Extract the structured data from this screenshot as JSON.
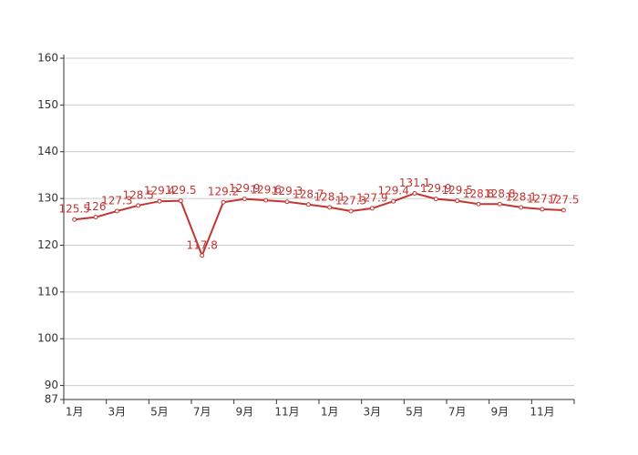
{
  "chart_data": {
    "type": "line",
    "categories": [
      "1月",
      null,
      "3月",
      null,
      "5月",
      null,
      "7月",
      null,
      "9月",
      null,
      "11月",
      null,
      "1月",
      null,
      "3月",
      null,
      "5月",
      null,
      "7月",
      null,
      "9月",
      null,
      "11月",
      null
    ],
    "series": [
      {
        "color": "#c23531",
        "values": [
          125.5,
          126,
          127.3,
          128.5,
          129.4,
          129.5,
          117.8,
          129.2,
          129.9,
          129.6,
          129.3,
          128.7,
          128.1,
          127.3,
          127.9,
          129.4,
          131.1,
          129.9,
          129.5,
          128.8,
          128.8,
          128.1,
          127.7,
          127.5
        ]
      }
    ],
    "ylim": [
      87,
      160
    ],
    "yticks": [
      87,
      90,
      100,
      110,
      120,
      130,
      140,
      150,
      160
    ],
    "grid": true
  }
}
